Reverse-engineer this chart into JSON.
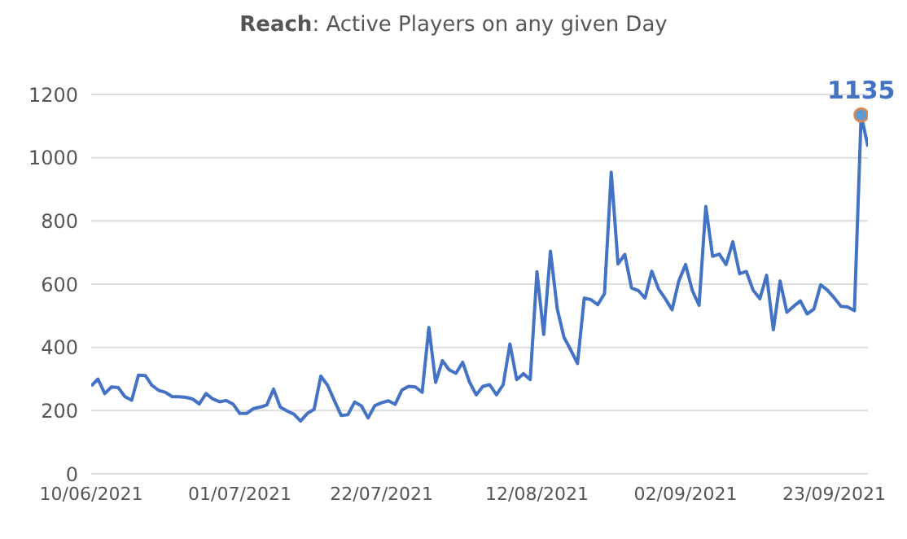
{
  "chart_data": {
    "type": "line",
    "title": "Reach: Active Players on any given Day",
    "categories": [
      "10/06/2021",
      null,
      null,
      null,
      null,
      null,
      null,
      null,
      null,
      null,
      null,
      null,
      null,
      null,
      null,
      null,
      null,
      null,
      null,
      null,
      null,
      null,
      "01/07/2021",
      null,
      null,
      null,
      null,
      null,
      null,
      null,
      null,
      null,
      null,
      null,
      null,
      null,
      null,
      null,
      null,
      null,
      null,
      null,
      null,
      "22/07/2021",
      null,
      null,
      null,
      null,
      null,
      null,
      null,
      null,
      null,
      null,
      null,
      null,
      null,
      null,
      null,
      null,
      null,
      null,
      null,
      null,
      null,
      null,
      "12/08/2021",
      null,
      null,
      null,
      null,
      null,
      null,
      null,
      null,
      null,
      null,
      null,
      null,
      null,
      null,
      null,
      null,
      null,
      null,
      null,
      null,
      null,
      "02/09/2021",
      null,
      null,
      null,
      null,
      null,
      null,
      null,
      null,
      null,
      null,
      null,
      null,
      null,
      null,
      null,
      null,
      null,
      null,
      null,
      null,
      null,
      "23/09/2021",
      null,
      null,
      null,
      null,
      null
    ],
    "series": [
      {
        "color": "#4472c4",
        "values": [
          278,
          300,
          254,
          275,
          273,
          244,
          233,
          312,
          311,
          280,
          264,
          258,
          244,
          244,
          242,
          237,
          221,
          254,
          237,
          228,
          232,
          221,
          191,
          191,
          206,
          211,
          218,
          268,
          211,
          199,
          189,
          167,
          191,
          204,
          309,
          280,
          232,
          185,
          187,
          227,
          215,
          177,
          216,
          225,
          231,
          220,
          265,
          277,
          275,
          258,
          463,
          289,
          358,
          329,
          318,
          353,
          291,
          250,
          277,
          282,
          250,
          282,
          411,
          298,
          317,
          298,
          639,
          441,
          704,
          522,
          432,
          392,
          349,
          556,
          551,
          535,
          570,
          954,
          664,
          694,
          588,
          580,
          556,
          641,
          585,
          554,
          519,
          610,
          662,
          580,
          533,
          846,
          688,
          695,
          662,
          734,
          633,
          640,
          581,
          554,
          628,
          456,
          610,
          511,
          530,
          547,
          506,
          521,
          598,
          581,
          557,
          530,
          528,
          516,
          1135,
          1035
        ],
        "value_labels": [
          null,
          null,
          null,
          null,
          null,
          null,
          null,
          null,
          null,
          null,
          null,
          null,
          null,
          null,
          null,
          null,
          null,
          null,
          null,
          null,
          null,
          null,
          null,
          null,
          null,
          null,
          null,
          null,
          null,
          null,
          null,
          null,
          null,
          null,
          null,
          null,
          null,
          null,
          null,
          null,
          null,
          null,
          null,
          null,
          null,
          null,
          null,
          null,
          null,
          null,
          null,
          null,
          null,
          null,
          null,
          null,
          null,
          null,
          null,
          null,
          null,
          null,
          null,
          null,
          null,
          null,
          null,
          null,
          null,
          null,
          null,
          null,
          null,
          null,
          null,
          null,
          null,
          null,
          null,
          null,
          null,
          null,
          null,
          null,
          null,
          null,
          null,
          null,
          null,
          null,
          null,
          null,
          null,
          null,
          null,
          null,
          null,
          null,
          null,
          null,
          null,
          null,
          null,
          null,
          null,
          null,
          null,
          null,
          null,
          null,
          null,
          null,
          null,
          null,
          "1135",
          null
        ]
      }
    ],
    "ylim": [
      0,
      1200
    ],
    "yticks": [
      0,
      200,
      400,
      600,
      800,
      1000,
      1200
    ],
    "grid": "y",
    "legend": false,
    "marker": "none",
    "line_style": "solid"
  }
}
